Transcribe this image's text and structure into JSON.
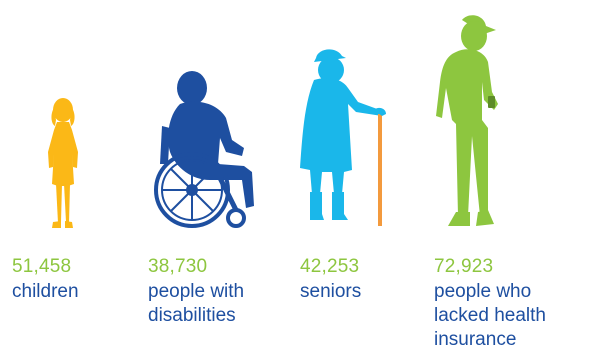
{
  "stats": [
    {
      "number": "51,458",
      "label": "children",
      "figure": "child-silhouette-icon",
      "color": "#fbb817"
    },
    {
      "number": "38,730",
      "label": "people with\ndisabilities",
      "figure": "wheelchair-user-silhouette-icon",
      "color": "#1e4fa0"
    },
    {
      "number": "42,253",
      "label": "seniors",
      "figure": "senior-with-cane-silhouette-icon",
      "color": "#1ab7ea"
    },
    {
      "number": "72,923",
      "label": "people who\nlacked health\ninsurance",
      "figure": "man-with-phone-silhouette-icon",
      "color": "#8dc63f"
    }
  ],
  "colors": {
    "number": "#8dc63f",
    "label": "#1e4fa0"
  }
}
